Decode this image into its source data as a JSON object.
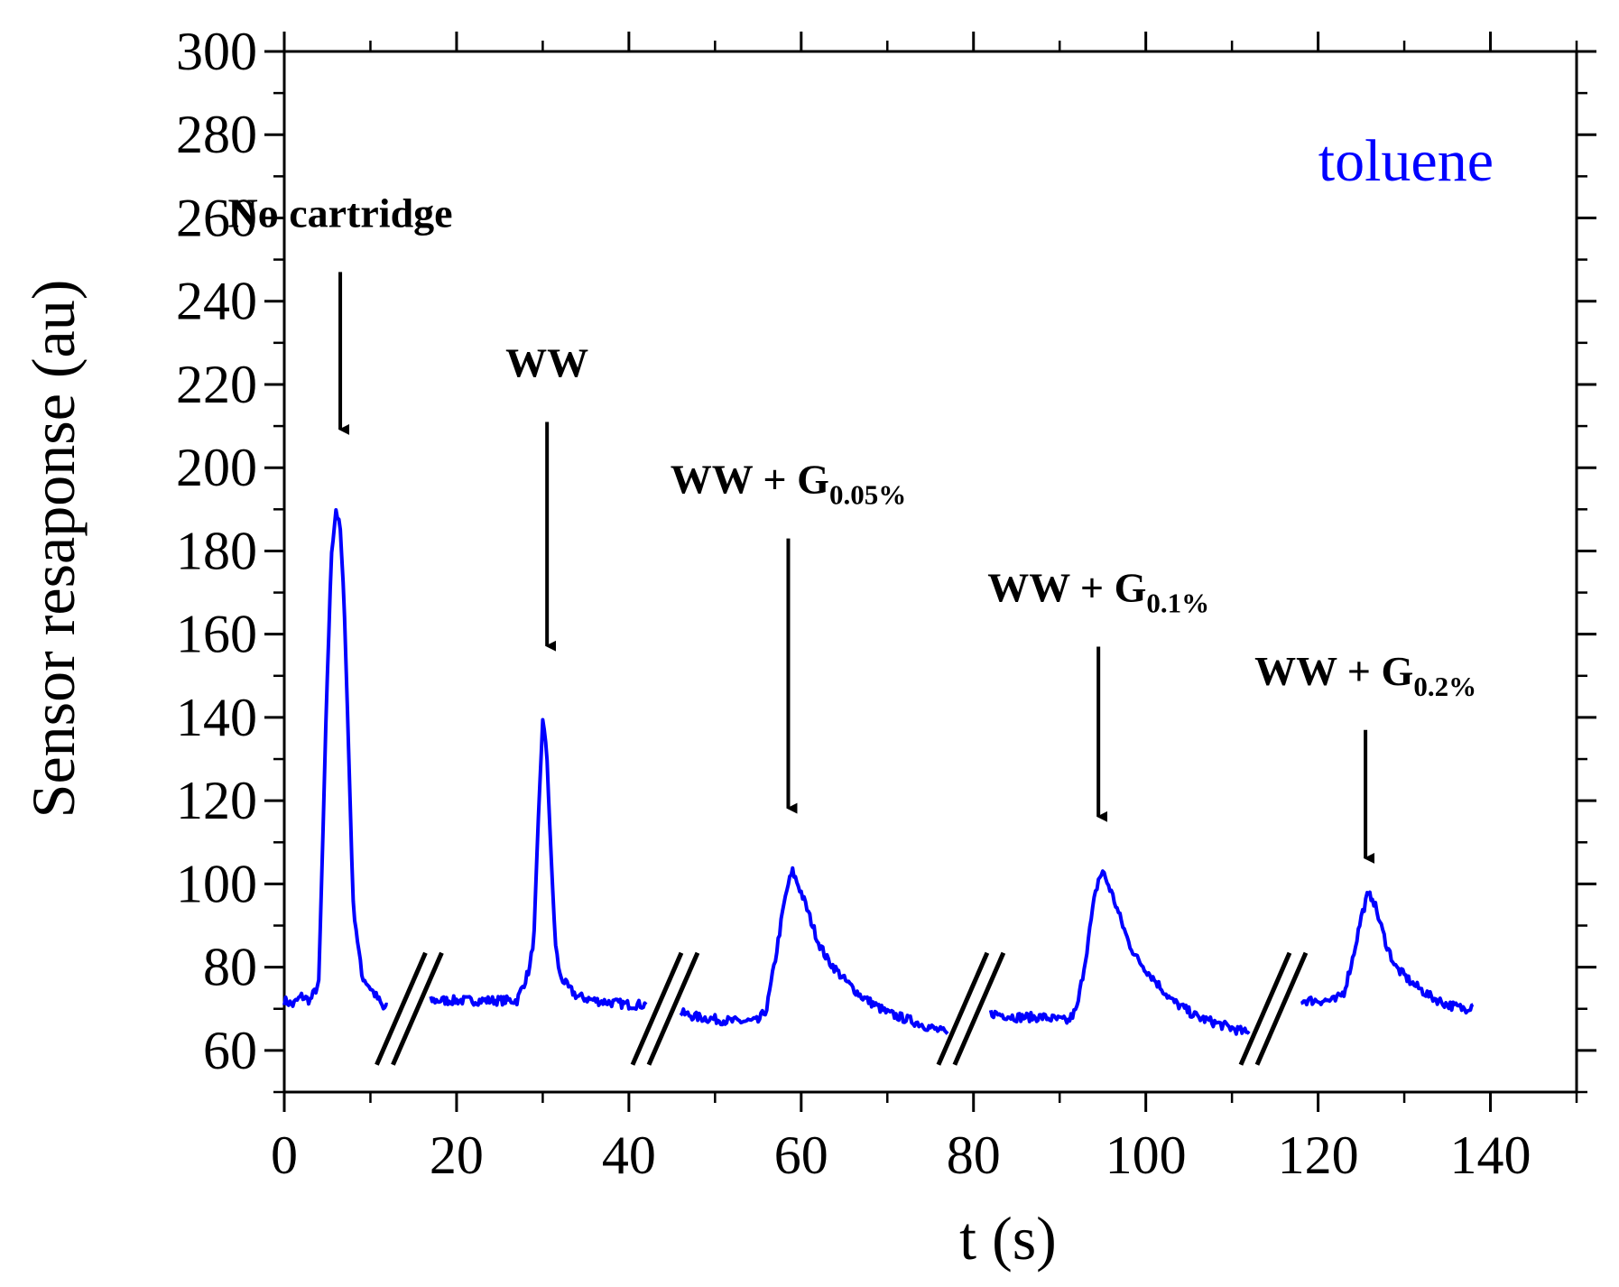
{
  "chart_data": {
    "type": "line",
    "title": "",
    "xlabel": "t (s)",
    "ylabel": "Sensor resaponse (au)",
    "xlim": [
      0,
      150
    ],
    "ylim": [
      50,
      300
    ],
    "xticks": [
      0,
      20,
      40,
      60,
      80,
      100,
      120,
      140
    ],
    "xtick_labels": [
      "0",
      "20",
      "40",
      "60",
      "80",
      "100",
      "120",
      "140"
    ],
    "yticks": [
      60,
      80,
      100,
      120,
      140,
      160,
      180,
      200,
      220,
      240,
      260,
      280,
      300
    ],
    "ytick_labels": [
      "60",
      "80",
      "100",
      "120",
      "140",
      "160",
      "180",
      "200",
      "220",
      "240",
      "260",
      "280",
      "300"
    ],
    "grid": false,
    "legend_position": "top-right",
    "series_color": "#0000ff",
    "series": [
      {
        "name": "toluene",
        "segments": [
          {
            "x": [
              0,
              1,
              2,
              3,
              4,
              5,
              5.5,
              6,
              6.5,
              7,
              7.5,
              8,
              9,
              10,
              11,
              11.5,
              12
            ],
            "y": [
              72,
              71,
              73,
              72,
              76,
              150,
              180,
              190,
              185,
              165,
              130,
              95,
              78,
              75,
              72,
              70,
              71
            ]
          },
          {
            "x": [
              17,
              20,
              24,
              27,
              28,
              28.5,
              29,
              29.5,
              30,
              30.5,
              31,
              31.5,
              32,
              33,
              34,
              36,
              40,
              42
            ],
            "y": [
              72,
              72,
              72,
              72,
              77,
              80,
              88,
              115,
              140,
              130,
              105,
              85,
              78,
              75,
              73,
              72,
              71,
              71
            ]
          },
          {
            "x": [
              46,
              48,
              52,
              55,
              56,
              57,
              58,
              58.5,
              59,
              60,
              61,
              62,
              63,
              65,
              67,
              70,
              73,
              77
            ],
            "y": [
              69,
              68,
              67,
              67,
              70,
              82,
              95,
              100,
              103,
              98,
              92,
              86,
              82,
              77,
              73,
              69,
              67,
              64
            ]
          },
          {
            "x": [
              82,
              85,
              88,
              91,
              92,
              93,
              94,
              94.5,
              95,
              96,
              97,
              98,
              99,
              101,
              103,
              106,
              109,
              112
            ],
            "y": [
              69,
              68,
              68,
              67,
              70,
              82,
              96,
              101,
              103,
              98,
              92,
              86,
              82,
              77,
              72,
              68,
              66,
              64
            ]
          },
          {
            "x": [
              118,
              120,
              122,
              123,
              124,
              125,
              125.7,
              126.3,
              127,
              128,
              129,
              131,
              133,
              135,
              137,
              138
            ],
            "y": [
              72,
              72,
              72,
              74,
              82,
              92,
              97,
              97,
              92,
              85,
              80,
              76,
              73,
              71,
              70,
              71
            ]
          }
        ]
      }
    ],
    "axis_breaks": [
      {
        "x": 14.5,
        "y": 70
      },
      {
        "x": 44.2,
        "y": 70
      },
      {
        "x": 79.7,
        "y": 70
      },
      {
        "x": 114.8,
        "y": 70
      }
    ],
    "annotations": [
      {
        "main": "No cartridge",
        "sub": "",
        "arrow_x": 6.5,
        "arrow_from_y": 247,
        "arrow_to_y": 207
      },
      {
        "main": "WW",
        "sub": "",
        "arrow_x": 30.5,
        "arrow_from_y": 211,
        "arrow_to_y": 155
      },
      {
        "main": "WW + G",
        "sub": "0.05%",
        "arrow_x": 58.5,
        "arrow_from_y": 183,
        "arrow_to_y": 116
      },
      {
        "main": "WW + G",
        "sub": "0.1%",
        "arrow_x": 94.5,
        "arrow_from_y": 157,
        "arrow_to_y": 114
      },
      {
        "main": "WW + G",
        "sub": "0.2%",
        "arrow_x": 125.5,
        "arrow_from_y": 137,
        "arrow_to_y": 104
      }
    ]
  }
}
